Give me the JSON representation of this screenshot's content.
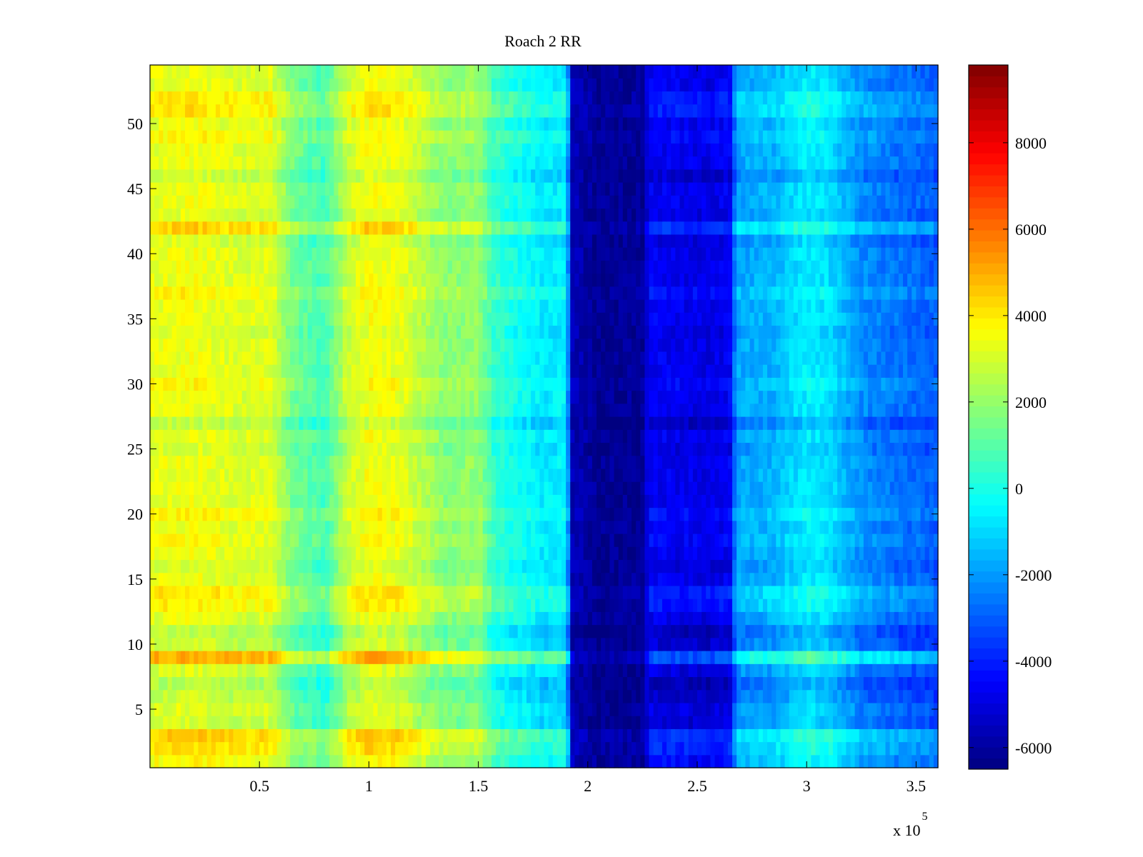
{
  "chart_data": {
    "type": "heatmap",
    "title": "Roach 2 RR",
    "xlabel": "",
    "ylabel": "",
    "x_multiplier_label": "x 10",
    "x_multiplier_exponent": "5",
    "xlim": [
      0,
      360000
    ],
    "ylim": [
      0.5,
      54.5
    ],
    "x_ticks": [
      {
        "value": 50000,
        "label": "0.5"
      },
      {
        "value": 100000,
        "label": "1"
      },
      {
        "value": 150000,
        "label": "1.5"
      },
      {
        "value": 200000,
        "label": "2"
      },
      {
        "value": 250000,
        "label": "2.5"
      },
      {
        "value": 300000,
        "label": "3"
      },
      {
        "value": 350000,
        "label": "3.5"
      }
    ],
    "y_ticks": [
      {
        "value": 5,
        "label": "5"
      },
      {
        "value": 10,
        "label": "10"
      },
      {
        "value": 15,
        "label": "15"
      },
      {
        "value": 20,
        "label": "20"
      },
      {
        "value": 25,
        "label": "25"
      },
      {
        "value": 30,
        "label": "30"
      },
      {
        "value": 35,
        "label": "35"
      },
      {
        "value": 40,
        "label": "40"
      },
      {
        "value": 45,
        "label": "45"
      },
      {
        "value": 50,
        "label": "50"
      }
    ],
    "colorbar": {
      "colormap": "jet",
      "clim": [
        -6500,
        9800
      ],
      "ticks": [
        {
          "value": 8000,
          "label": "8000"
        },
        {
          "value": 6000,
          "label": "6000"
        },
        {
          "value": 4000,
          "label": "4000"
        },
        {
          "value": 2000,
          "label": "2000"
        },
        {
          "value": 0,
          "label": "0"
        },
        {
          "value": -2000,
          "label": "-2000"
        },
        {
          "value": -4000,
          "label": "-4000"
        },
        {
          "value": -6000,
          "label": "-6000"
        }
      ]
    },
    "column_profile": [
      {
        "x": 0,
        "value": 3300
      },
      {
        "x": 20000,
        "value": 3500
      },
      {
        "x": 40000,
        "value": 3100
      },
      {
        "x": 55000,
        "value": 3200
      },
      {
        "x": 65000,
        "value": 1500
      },
      {
        "x": 80000,
        "value": 700
      },
      {
        "x": 90000,
        "value": 2800
      },
      {
        "x": 100000,
        "value": 3600
      },
      {
        "x": 115000,
        "value": 3300
      },
      {
        "x": 123000,
        "value": 2600
      },
      {
        "x": 135000,
        "value": 1800
      },
      {
        "x": 150000,
        "value": 2000
      },
      {
        "x": 157000,
        "value": 500
      },
      {
        "x": 170000,
        "value": -200
      },
      {
        "x": 180000,
        "value": -700
      },
      {
        "x": 190000,
        "value": -500
      },
      {
        "x": 193000,
        "value": -5600
      },
      {
        "x": 205000,
        "value": -6200
      },
      {
        "x": 225000,
        "value": -6100
      },
      {
        "x": 228000,
        "value": -4600
      },
      {
        "x": 255000,
        "value": -4900
      },
      {
        "x": 265000,
        "value": -4600
      },
      {
        "x": 268000,
        "value": -1800
      },
      {
        "x": 285000,
        "value": -1600
      },
      {
        "x": 300000,
        "value": -600
      },
      {
        "x": 310000,
        "value": -900
      },
      {
        "x": 325000,
        "value": -2200
      },
      {
        "x": 345000,
        "value": -2700
      },
      {
        "x": 360000,
        "value": -3000
      }
    ],
    "row_offsets": [
      {
        "row": 1,
        "value": 300
      },
      {
        "row": 2,
        "value": 800
      },
      {
        "row": 3,
        "value": 1100
      },
      {
        "row": 4,
        "value": -400
      },
      {
        "row": 5,
        "value": -200
      },
      {
        "row": 6,
        "value": -600
      },
      {
        "row": 7,
        "value": -900
      },
      {
        "row": 8,
        "value": -300
      },
      {
        "row": 9,
        "value": 1600
      },
      {
        "row": 10,
        "value": -500
      },
      {
        "row": 11,
        "value": -800
      },
      {
        "row": 12,
        "value": -100
      },
      {
        "row": 13,
        "value": 500
      },
      {
        "row": 14,
        "value": 700
      },
      {
        "row": 16,
        "value": -300
      },
      {
        "row": 18,
        "value": 200
      },
      {
        "row": 20,
        "value": 400
      },
      {
        "row": 25,
        "value": -300
      },
      {
        "row": 27,
        "value": -700
      },
      {
        "row": 30,
        "value": 300
      },
      {
        "row": 34,
        "value": -200
      },
      {
        "row": 37,
        "value": 400
      },
      {
        "row": 41,
        "value": -300
      },
      {
        "row": 42,
        "value": 1000
      },
      {
        "row": 43,
        "value": -200
      },
      {
        "row": 46,
        "value": -500
      },
      {
        "row": 49,
        "value": 400
      },
      {
        "row": 51,
        "value": 700
      },
      {
        "row": 52,
        "value": 600
      }
    ]
  }
}
